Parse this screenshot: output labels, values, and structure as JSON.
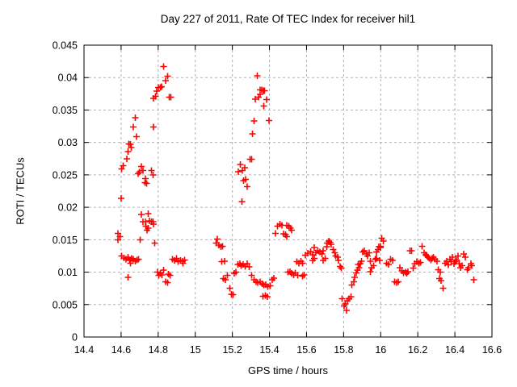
{
  "chart_data": {
    "type": "scatter",
    "title": "Day 227 of 2011, Rate Of TEC Index for receiver hil1",
    "xlabel": "GPS time / hours",
    "ylabel": "ROTI / TECUs",
    "xlim": [
      14.4,
      16.6
    ],
    "ylim": [
      0,
      0.045
    ],
    "xtick_values": [
      14.4,
      14.6,
      14.8,
      15.0,
      15.2,
      15.4,
      15.6,
      15.8,
      16.0,
      16.2,
      16.4,
      16.6
    ],
    "xtick_labels": [
      "14.4",
      "14.6",
      "14.8",
      "15",
      "15.2",
      "15.4",
      "15.6",
      "15.8",
      "16",
      "16.2",
      "16.4",
      "16.6"
    ],
    "ytick_values": [
      0,
      0.005,
      0.01,
      0.015,
      0.02,
      0.025,
      0.03,
      0.035,
      0.04,
      0.045
    ],
    "ytick_labels": [
      "0",
      "0.005",
      "0.01",
      "0.015",
      "0.02",
      "0.025",
      "0.03",
      "0.035",
      "0.04",
      "0.045"
    ],
    "grid": true,
    "legend": "none",
    "marker_shape": "plus",
    "marker_color": "#ff0000",
    "grid_color": "#b0b0b0",
    "frame_color": "#000000",
    "series": [
      {
        "name": "ROTI",
        "points": [
          [
            14.583,
            0.016
          ],
          [
            14.583,
            0.015
          ],
          [
            14.593,
            0.0155
          ],
          [
            14.6,
            0.0214
          ],
          [
            14.603,
            0.0259
          ],
          [
            14.603,
            0.0125
          ],
          [
            14.612,
            0.0264
          ],
          [
            14.615,
            0.0122
          ],
          [
            14.627,
            0.012
          ],
          [
            14.63,
            0.0275
          ],
          [
            14.637,
            0.0286
          ],
          [
            14.637,
            0.0123
          ],
          [
            14.637,
            0.0092
          ],
          [
            14.641,
            0.0298
          ],
          [
            14.647,
            0.0118
          ],
          [
            14.651,
            0.0297
          ],
          [
            14.651,
            0.0114
          ],
          [
            14.654,
            0.0292
          ],
          [
            14.656,
            0.0121
          ],
          [
            14.666,
            0.0324
          ],
          [
            14.666,
            0.012
          ],
          [
            14.676,
            0.0338
          ],
          [
            14.676,
            0.0117
          ],
          [
            14.683,
            0.0309
          ],
          [
            14.685,
            0.0119
          ],
          [
            14.691,
            0.0252
          ],
          [
            14.695,
            0.012
          ],
          [
            14.698,
            0.0254
          ],
          [
            14.702,
            0.015
          ],
          [
            14.709,
            0.0263
          ],
          [
            14.709,
            0.0189
          ],
          [
            14.717,
            0.0257
          ],
          [
            14.717,
            0.0178
          ],
          [
            14.728,
            0.0238
          ],
          [
            14.731,
            0.0244
          ],
          [
            14.731,
            0.0178
          ],
          [
            14.734,
            0.0171
          ],
          [
            14.738,
            0.0237
          ],
          [
            14.739,
            0.0165
          ],
          [
            14.746,
            0.019
          ],
          [
            14.746,
            0.0168
          ],
          [
            14.753,
            0.0179
          ],
          [
            14.763,
            0.0257
          ],
          [
            14.763,
            0.0178
          ],
          [
            14.772,
            0.025
          ],
          [
            14.772,
            0.0178
          ],
          [
            14.775,
            0.0324
          ],
          [
            14.775,
            0.0368
          ],
          [
            14.775,
            0.0174
          ],
          [
            14.782,
            0.0145
          ],
          [
            14.786,
            0.0371
          ],
          [
            14.792,
            0.0379
          ],
          [
            14.797,
            0.01
          ],
          [
            14.801,
            0.0385
          ],
          [
            14.804,
            0.0095
          ],
          [
            14.811,
            0.0385
          ],
          [
            14.811,
            0.0098
          ],
          [
            14.818,
            0.0386
          ],
          [
            14.821,
            0.0096
          ],
          [
            14.83,
            0.0417
          ],
          [
            14.83,
            0.0103
          ],
          [
            14.84,
            0.0395
          ],
          [
            14.84,
            0.0085
          ],
          [
            14.85,
            0.0402
          ],
          [
            14.85,
            0.0084
          ],
          [
            14.855,
            0.0097
          ],
          [
            14.859,
            0.037
          ],
          [
            14.865,
            0.0095
          ],
          [
            14.869,
            0.037
          ],
          [
            14.876,
            0.012
          ],
          [
            14.888,
            0.0118
          ],
          [
            14.898,
            0.0121
          ],
          [
            14.908,
            0.0116
          ],
          [
            14.92,
            0.0118
          ],
          [
            14.932,
            0.0117
          ],
          [
            14.934,
            0.0114
          ],
          [
            14.942,
            0.0119
          ],
          [
            15.113,
            0.0145
          ],
          [
            15.119,
            0.0151
          ],
          [
            15.128,
            0.0142
          ],
          [
            15.138,
            0.0139
          ],
          [
            15.142,
            0.0116
          ],
          [
            15.148,
            0.014
          ],
          [
            15.152,
            0.009
          ],
          [
            15.157,
            0.0117
          ],
          [
            15.163,
            0.0088
          ],
          [
            15.174,
            0.0095
          ],
          [
            15.186,
            0.0075
          ],
          [
            15.196,
            0.0066
          ],
          [
            15.203,
            0.0065
          ],
          [
            15.21,
            0.0098
          ],
          [
            15.218,
            0.01
          ],
          [
            15.229,
            0.0112
          ],
          [
            15.232,
            0.0255
          ],
          [
            15.24,
            0.0113
          ],
          [
            15.242,
            0.0266
          ],
          [
            15.247,
            0.011
          ],
          [
            15.251,
            0.0209
          ],
          [
            15.254,
            0.0257
          ],
          [
            15.258,
            0.0112
          ],
          [
            15.261,
            0.0241
          ],
          [
            15.266,
            0.0261
          ],
          [
            15.269,
            0.0109
          ],
          [
            15.271,
            0.0243
          ],
          [
            15.279,
            0.0113
          ],
          [
            15.28,
            0.0232
          ],
          [
            15.29,
            0.0108
          ],
          [
            15.295,
            0.0274
          ],
          [
            15.305,
            0.0274
          ],
          [
            15.305,
            0.0095
          ],
          [
            15.309,
            0.0313
          ],
          [
            15.317,
            0.0333
          ],
          [
            15.317,
            0.0088
          ],
          [
            15.324,
            0.0367
          ],
          [
            15.327,
            0.0085
          ],
          [
            15.334,
            0.0403
          ],
          [
            15.337,
            0.0084
          ],
          [
            15.341,
            0.037
          ],
          [
            15.349,
            0.0381
          ],
          [
            15.349,
            0.0374
          ],
          [
            15.349,
            0.0085
          ],
          [
            15.359,
            0.0381
          ],
          [
            15.36,
            0.0082
          ],
          [
            15.366,
            0.0063
          ],
          [
            15.368,
            0.038
          ],
          [
            15.37,
            0.0356
          ],
          [
            15.37,
            0.008
          ],
          [
            15.373,
            0.038
          ],
          [
            15.377,
            0.0064
          ],
          [
            15.38,
            0.0081
          ],
          [
            15.385,
            0.0366
          ],
          [
            15.389,
            0.0062
          ],
          [
            15.392,
            0.0078
          ],
          [
            15.397,
            0.0334
          ],
          [
            15.404,
            0.0079
          ],
          [
            15.414,
            0.0088
          ],
          [
            15.424,
            0.0091
          ],
          [
            15.433,
            0.016
          ],
          [
            15.443,
            0.0171
          ],
          [
            15.457,
            0.0174
          ],
          [
            15.468,
            0.0172
          ],
          [
            15.476,
            0.0159
          ],
          [
            15.486,
            0.0158
          ],
          [
            15.494,
            0.0172
          ],
          [
            15.494,
            0.0155
          ],
          [
            15.501,
            0.01
          ],
          [
            15.505,
            0.0171
          ],
          [
            15.511,
            0.0101
          ],
          [
            15.512,
            0.0168
          ],
          [
            15.52,
            0.0165
          ],
          [
            15.52,
            0.0098
          ],
          [
            15.53,
            0.0096
          ],
          [
            15.54,
            0.0099
          ],
          [
            15.549,
            0.0116
          ],
          [
            15.552,
            0.0095
          ],
          [
            15.559,
            0.0114
          ],
          [
            15.569,
            0.0117
          ],
          [
            15.578,
            0.0114
          ],
          [
            15.578,
            0.0094
          ],
          [
            15.588,
            0.0096
          ],
          [
            15.593,
            0.0126
          ],
          [
            15.607,
            0.0129
          ],
          [
            15.622,
            0.0132
          ],
          [
            15.632,
            0.0127
          ],
          [
            15.632,
            0.0118
          ],
          [
            15.642,
            0.0138
          ],
          [
            15.642,
            0.0121
          ],
          [
            15.651,
            0.013
          ],
          [
            15.661,
            0.0133
          ],
          [
            15.671,
            0.0131
          ],
          [
            15.683,
            0.0128
          ],
          [
            15.69,
            0.0133
          ],
          [
            15.69,
            0.0118
          ],
          [
            15.7,
            0.0121
          ],
          [
            15.709,
            0.0139
          ],
          [
            15.712,
            0.0145
          ],
          [
            15.719,
            0.0148
          ],
          [
            15.726,
            0.0146
          ],
          [
            15.733,
            0.0143
          ],
          [
            15.743,
            0.0135
          ],
          [
            15.752,
            0.013
          ],
          [
            15.758,
            0.0125
          ],
          [
            15.767,
            0.0123
          ],
          [
            15.773,
            0.0118
          ],
          [
            15.781,
            0.0109
          ],
          [
            15.787,
            0.0106
          ],
          [
            15.791,
            0.0059
          ],
          [
            15.802,
            0.0048
          ],
          [
            15.81,
            0.0051
          ],
          [
            15.816,
            0.0041
          ],
          [
            15.82,
            0.0056
          ],
          [
            15.83,
            0.0059
          ],
          [
            15.839,
            0.0062
          ],
          [
            15.845,
            0.008
          ],
          [
            15.854,
            0.0085
          ],
          [
            15.86,
            0.0092
          ],
          [
            15.868,
            0.0099
          ],
          [
            15.874,
            0.0103
          ],
          [
            15.879,
            0.0112
          ],
          [
            15.883,
            0.0107
          ],
          [
            15.889,
            0.0113
          ],
          [
            15.897,
            0.0117
          ],
          [
            15.903,
            0.0131
          ],
          [
            15.912,
            0.0133
          ],
          [
            15.922,
            0.0128
          ],
          [
            15.929,
            0.0125
          ],
          [
            15.937,
            0.013
          ],
          [
            15.944,
            0.0117
          ],
          [
            15.944,
            0.0101
          ],
          [
            15.951,
            0.0107
          ],
          [
            15.961,
            0.011
          ],
          [
            15.97,
            0.012
          ],
          [
            15.976,
            0.0131
          ],
          [
            15.976,
            0.0121
          ],
          [
            15.985,
            0.0135
          ],
          [
            15.99,
            0.0139
          ],
          [
            15.995,
            0.0118
          ],
          [
            15.998,
            0.014
          ],
          [
            15.999,
            0.0138
          ],
          [
            16.006,
            0.0152
          ],
          [
            16.014,
            0.0148
          ],
          [
            16.031,
            0.0114
          ],
          [
            16.042,
            0.0112
          ],
          [
            16.053,
            0.012
          ],
          [
            16.065,
            0.0118
          ],
          [
            16.075,
            0.0085
          ],
          [
            16.085,
            0.0084
          ],
          [
            16.094,
            0.0085
          ],
          [
            16.104,
            0.0107
          ],
          [
            16.114,
            0.0102
          ],
          [
            16.123,
            0.0099
          ],
          [
            16.133,
            0.01
          ],
          [
            16.14,
            0.0098
          ],
          [
            16.147,
            0.0101
          ],
          [
            16.157,
            0.0133
          ],
          [
            16.166,
            0.0133
          ],
          [
            16.176,
            0.0106
          ],
          [
            16.183,
            0.0113
          ],
          [
            16.195,
            0.0116
          ],
          [
            16.205,
            0.0114
          ],
          [
            16.215,
            0.0115
          ],
          [
            16.224,
            0.014
          ],
          [
            16.234,
            0.013
          ],
          [
            16.242,
            0.0127
          ],
          [
            16.249,
            0.0125
          ],
          [
            16.256,
            0.0123
          ],
          [
            16.263,
            0.0121
          ],
          [
            16.271,
            0.0119
          ],
          [
            16.278,
            0.0121
          ],
          [
            16.285,
            0.0123
          ],
          [
            16.292,
            0.012
          ],
          [
            16.303,
            0.0117
          ],
          [
            16.311,
            0.0104
          ],
          [
            16.317,
            0.009
          ],
          [
            16.321,
            0.01
          ],
          [
            16.326,
            0.0087
          ],
          [
            16.336,
            0.0075
          ],
          [
            16.347,
            0.0114
          ],
          [
            16.355,
            0.0117
          ],
          [
            16.365,
            0.0111
          ],
          [
            16.373,
            0.012
          ],
          [
            16.38,
            0.0116
          ],
          [
            16.387,
            0.0123
          ],
          [
            16.395,
            0.0113
          ],
          [
            16.402,
            0.0116
          ],
          [
            16.409,
            0.0119
          ],
          [
            16.416,
            0.0125
          ],
          [
            16.423,
            0.0113
          ],
          [
            16.431,
            0.0107
          ],
          [
            16.438,
            0.011
          ],
          [
            16.448,
            0.0128
          ],
          [
            16.457,
            0.0123
          ],
          [
            16.467,
            0.0104
          ],
          [
            16.474,
            0.0107
          ],
          [
            16.486,
            0.0113
          ],
          [
            16.492,
            0.011
          ],
          [
            16.501,
            0.0088
          ]
        ]
      }
    ]
  }
}
